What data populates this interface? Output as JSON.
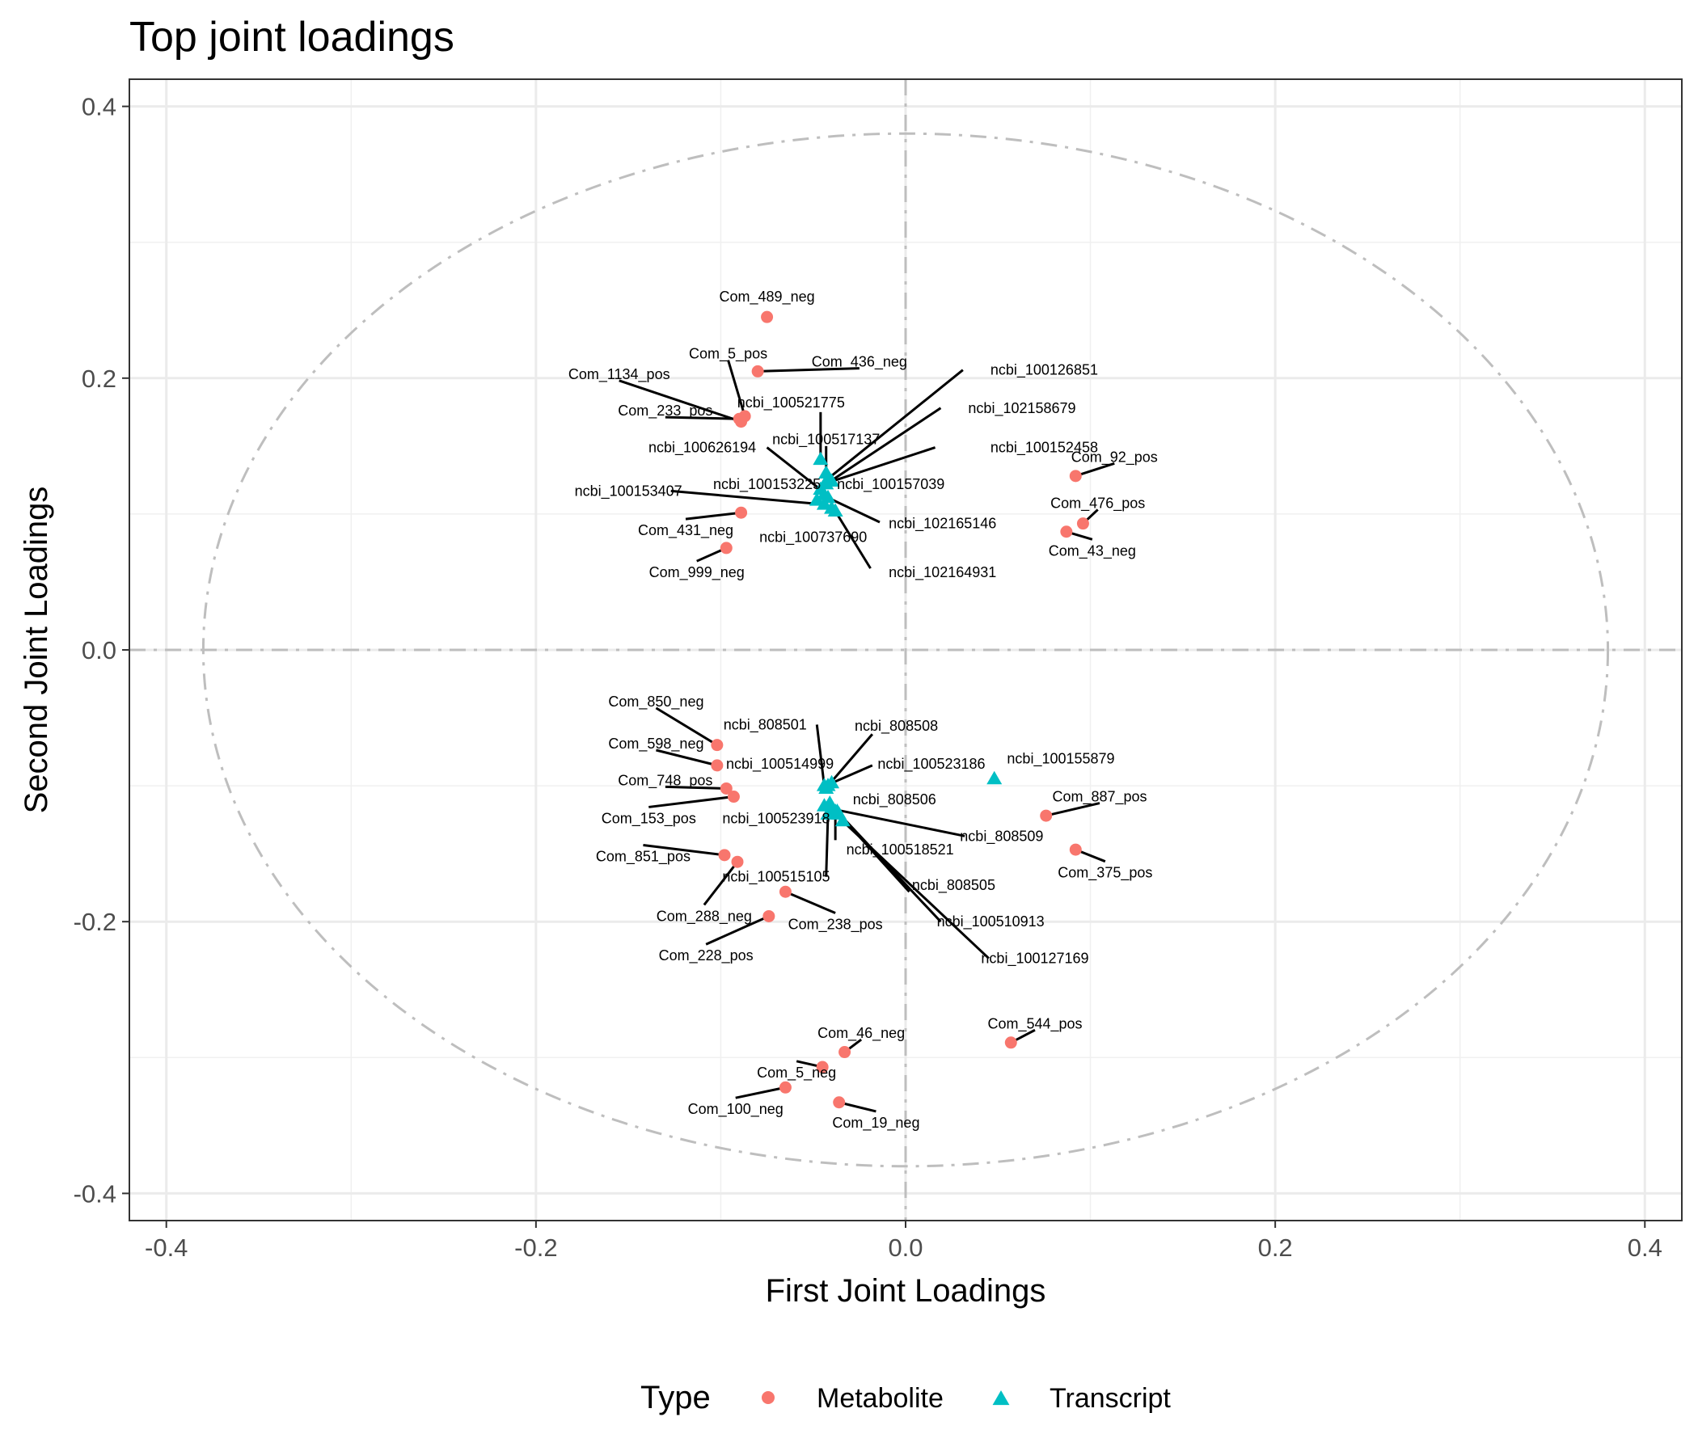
{
  "chart_data": {
    "type": "scatter",
    "title": "Top joint loadings",
    "xlabel": "First Joint Loadings",
    "ylabel": "Second Joint Loadings",
    "xlim": [
      -0.42,
      0.42
    ],
    "ylim": [
      -0.42,
      0.42
    ],
    "xticks": [
      -0.4,
      -0.2,
      0.0,
      0.2,
      0.4
    ],
    "yticks": [
      -0.4,
      -0.2,
      0.0,
      0.2,
      0.4
    ],
    "xtick_labels": [
      "-0.4",
      "-0.2",
      "0.0",
      "0.2",
      "0.4"
    ],
    "ytick_labels": [
      "-0.4",
      "-0.2",
      "0.0",
      "0.2",
      "0.4"
    ],
    "grid": true,
    "reference_lines": {
      "x": 0,
      "y": 0,
      "style": "dashdot"
    },
    "circle_radius": 0.38,
    "legend": {
      "title": "Type",
      "position": "bottom",
      "entries": [
        {
          "name": "Metabolite",
          "shape": "circle",
          "color": "#F8766D"
        },
        {
          "name": "Transcript",
          "shape": "triangle",
          "color": "#00BFC4"
        }
      ]
    },
    "series": [
      {
        "name": "Metabolite",
        "color": "#F8766D",
        "shape": "circle",
        "points": [
          {
            "label": "Com_489_neg",
            "x": -0.075,
            "y": 0.245,
            "lx": -0.075,
            "ly": 0.26
          },
          {
            "label": "Com_436_neg",
            "x": -0.08,
            "y": 0.205,
            "lx": -0.025,
            "ly": 0.212
          },
          {
            "label": "Com_5_pos",
            "x": -0.087,
            "y": 0.172,
            "lx": -0.096,
            "ly": 0.218
          },
          {
            "label": "Com_1134_pos",
            "x": -0.089,
            "y": 0.168,
            "lx": -0.155,
            "ly": 0.203
          },
          {
            "label": "Com_233_pos",
            "x": -0.09,
            "y": 0.17,
            "lx": -0.13,
            "ly": 0.176
          },
          {
            "label": "Com_92_pos",
            "x": 0.092,
            "y": 0.128,
            "lx": 0.113,
            "ly": 0.142
          },
          {
            "label": "Com_476_pos",
            "x": 0.096,
            "y": 0.093,
            "lx": 0.104,
            "ly": 0.108
          },
          {
            "label": "Com_43_neg",
            "x": 0.087,
            "y": 0.087,
            "lx": 0.101,
            "ly": 0.073
          },
          {
            "label": "Com_431_neg",
            "x": -0.089,
            "y": 0.101,
            "lx": -0.119,
            "ly": 0.088
          },
          {
            "label": "Com_999_neg",
            "x": -0.097,
            "y": 0.075,
            "lx": -0.113,
            "ly": 0.057
          },
          {
            "label": "Com_850_neg",
            "x": -0.102,
            "y": -0.07,
            "lx": -0.135,
            "ly": -0.038
          },
          {
            "label": "Com_598_neg",
            "x": -0.102,
            "y": -0.085,
            "lx": -0.135,
            "ly": -0.069
          },
          {
            "label": "Com_748_pos",
            "x": -0.097,
            "y": -0.102,
            "lx": -0.13,
            "ly": -0.096
          },
          {
            "label": "Com_153_pos",
            "x": -0.093,
            "y": -0.108,
            "lx": -0.139,
            "ly": -0.124
          },
          {
            "label": "Com_851_pos",
            "x": -0.098,
            "y": -0.151,
            "lx": -0.142,
            "ly": -0.152
          },
          {
            "label": "Com_288_neg",
            "x": -0.091,
            "y": -0.156,
            "lx": -0.109,
            "ly": -0.196
          },
          {
            "label": "Com_238_pos",
            "x": -0.065,
            "y": -0.178,
            "lx": -0.038,
            "ly": -0.202
          },
          {
            "label": "Com_228_pos",
            "x": -0.074,
            "y": -0.196,
            "lx": -0.108,
            "ly": -0.225
          },
          {
            "label": "Com_887_pos",
            "x": 0.076,
            "y": -0.122,
            "lx": 0.105,
            "ly": -0.108
          },
          {
            "label": "Com_375_pos",
            "x": 0.092,
            "y": -0.147,
            "lx": 0.108,
            "ly": -0.164
          },
          {
            "label": "Com_544_pos",
            "x": 0.057,
            "y": -0.289,
            "lx": 0.07,
            "ly": -0.275
          },
          {
            "label": "Com_46_neg",
            "x": -0.033,
            "y": -0.296,
            "lx": -0.024,
            "ly": -0.282
          },
          {
            "label": "Com_5_neg",
            "x": -0.045,
            "y": -0.307,
            "lx": -0.059,
            "ly": -0.311
          },
          {
            "label": "Com_100_neg",
            "x": -0.065,
            "y": -0.322,
            "lx": -0.092,
            "ly": -0.338
          },
          {
            "label": "Com_19_neg",
            "x": -0.036,
            "y": -0.333,
            "lx": -0.016,
            "ly": -0.348
          }
        ]
      },
      {
        "name": "Transcript",
        "color": "#00BFC4",
        "shape": "triangle",
        "points": [
          {
            "label": "ncbi_100126851",
            "x": -0.042,
            "y": 0.126,
            "lx": 0.075,
            "ly": 0.206,
            "lead": [
              0.031,
              0.206
            ]
          },
          {
            "label": "ncbi_102158679",
            "x": -0.043,
            "y": 0.122,
            "lx": 0.063,
            "ly": 0.178,
            "lead": [
              0.019,
              0.178
            ]
          },
          {
            "label": "ncbi_100521775",
            "x": -0.046,
            "y": 0.14,
            "lx": -0.062,
            "ly": 0.182,
            "lead": [
              -0.046,
              0.175
            ]
          },
          {
            "label": "ncbi_100517137",
            "x": -0.043,
            "y": 0.13,
            "lx": -0.043,
            "ly": 0.155,
            "lead": [
              -0.043,
              0.15
            ]
          },
          {
            "label": "ncbi_100152458",
            "x": -0.04,
            "y": 0.124,
            "lx": 0.075,
            "ly": 0.149,
            "lead": [
              0.016,
              0.149
            ]
          },
          {
            "label": "ncbi_100626194",
            "x": -0.046,
            "y": 0.118,
            "lx": -0.11,
            "ly": 0.149,
            "lead": [
              -0.075,
              0.149
            ]
          },
          {
            "label": "ncbi_100157039",
            "x": -0.044,
            "y": 0.114,
            "lx": -0.008,
            "ly": 0.122,
            "lead": [
              -0.044,
              0.114
            ]
          },
          {
            "label": "ncbi_100153225",
            "x": -0.048,
            "y": 0.11,
            "lx": -0.075,
            "ly": 0.122,
            "lead": [
              -0.048,
              0.11
            ]
          },
          {
            "label": "ncbi_100153407",
            "x": -0.044,
            "y": 0.107,
            "lx": -0.15,
            "ly": 0.117,
            "lead": [
              -0.127,
              0.117
            ]
          },
          {
            "label": "ncbi_102165146",
            "x": -0.042,
            "y": 0.112,
            "lx": 0.02,
            "ly": 0.093,
            "lead": [
              -0.014,
              0.094
            ]
          },
          {
            "label": "ncbi_100737690",
            "x": -0.04,
            "y": 0.104,
            "lx": -0.05,
            "ly": 0.083,
            "lead": [
              -0.04,
              0.104
            ]
          },
          {
            "label": "ncbi_102164931",
            "x": -0.038,
            "y": 0.102,
            "lx": 0.02,
            "ly": 0.057,
            "lead": [
              -0.019,
              0.06
            ]
          },
          {
            "label": "ncbi_808501",
            "x": -0.044,
            "y": -0.1,
            "lx": -0.076,
            "ly": -0.055,
            "lead": [
              -0.048,
              -0.055
            ]
          },
          {
            "label": "ncbi_808508",
            "x": -0.042,
            "y": -0.1,
            "lx": -0.005,
            "ly": -0.056,
            "lead": [
              -0.018,
              -0.062
            ]
          },
          {
            "label": "ncbi_100514999",
            "x": -0.043,
            "y": -0.102,
            "lx": -0.068,
            "ly": -0.084,
            "lead": [
              -0.043,
              -0.102
            ]
          },
          {
            "label": "ncbi_100523186",
            "x": -0.04,
            "y": -0.098,
            "lx": 0.014,
            "ly": -0.084,
            "lead": [
              -0.018,
              -0.085
            ]
          },
          {
            "label": "ncbi_100155879",
            "x": 0.048,
            "y": -0.095,
            "lx": 0.084,
            "ly": -0.08,
            "lead": null
          },
          {
            "label": "ncbi_808506",
            "x": -0.041,
            "y": -0.113,
            "lx": -0.006,
            "ly": -0.11,
            "lead": [
              -0.041,
              -0.113
            ]
          },
          {
            "label": "ncbi_100523918",
            "x": -0.044,
            "y": -0.115,
            "lx": -0.07,
            "ly": -0.124,
            "lead": [
              -0.044,
              -0.115
            ]
          },
          {
            "label": "ncbi_808509",
            "x": -0.04,
            "y": -0.117,
            "lx": 0.052,
            "ly": -0.137,
            "lead": [
              0.032,
              -0.137
            ]
          },
          {
            "label": "ncbi_100518521",
            "x": -0.038,
            "y": -0.119,
            "lx": -0.003,
            "ly": -0.147,
            "lead": [
              -0.038,
              -0.14
            ]
          },
          {
            "label": "ncbi_100515105",
            "x": -0.042,
            "y": -0.121,
            "lx": -0.07,
            "ly": -0.167,
            "lead": [
              -0.043,
              -0.167
            ]
          },
          {
            "label": "ncbi_808505",
            "x": -0.036,
            "y": -0.121,
            "lx": 0.026,
            "ly": -0.173,
            "lead": [
              0.002,
              -0.178
            ]
          },
          {
            "label": "ncbi_100510913",
            "x": -0.037,
            "y": -0.119,
            "lx": 0.046,
            "ly": -0.2,
            "lead": [
              0.019,
              -0.2
            ]
          },
          {
            "label": "ncbi_100127169",
            "x": -0.034,
            "y": -0.126,
            "lx": 0.07,
            "ly": -0.227,
            "lead": [
              0.045,
              -0.227
            ]
          }
        ]
      }
    ]
  }
}
